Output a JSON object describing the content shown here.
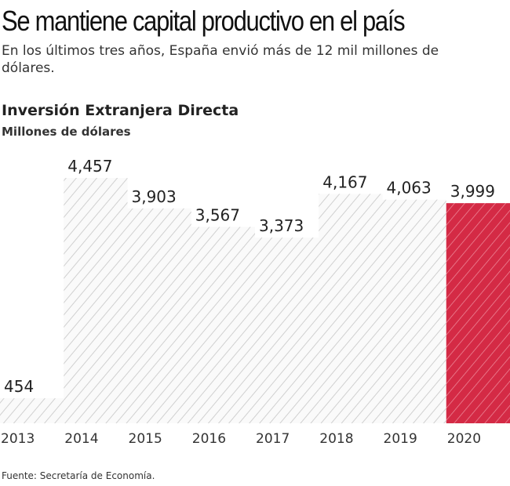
{
  "header": {
    "title": "Se mantiene capital productivo en el país",
    "subtitle": "En los últimos tres años, España envió más de 12 mil millones de dólares."
  },
  "chart_data": {
    "type": "bar",
    "title": "Inversión Extranjera Directa",
    "ylabel": "Millones de dólares",
    "categories": [
      "2013",
      "2014",
      "2015",
      "2016",
      "2017",
      "2018",
      "2019",
      "2020"
    ],
    "values": [
      454,
      4457,
      3903,
      3567,
      3373,
      4167,
      4063,
      3999
    ],
    "labels": [
      "454",
      "4,457",
      "3,903",
      "3,567",
      "3,373",
      "4,167",
      "4,063",
      "3,999"
    ],
    "highlight": "2020",
    "colors": {
      "default": "#f4f4f4",
      "hatch": "#cfcfcf",
      "highlight": "#d42a45"
    },
    "grid": false
  },
  "footer": {
    "source": "Fuente: Secretaría de Economía."
  }
}
